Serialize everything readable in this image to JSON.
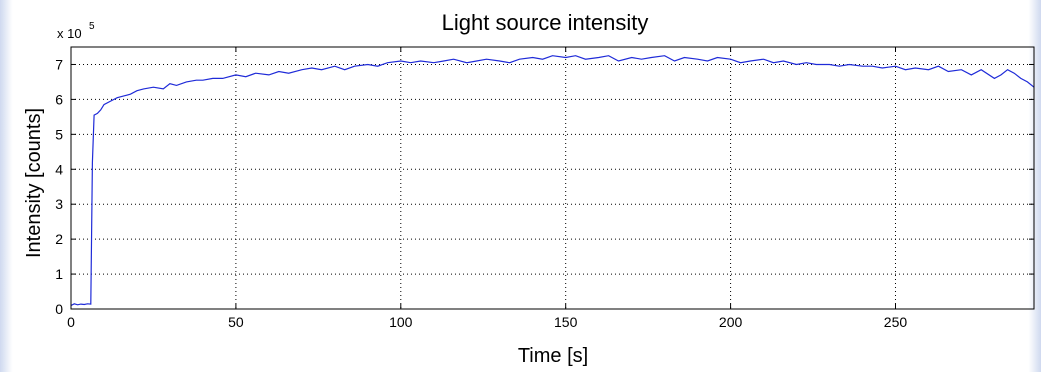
{
  "chart_data": {
    "type": "line",
    "title": "Light source intensity",
    "xlabel": "Time [s]",
    "ylabel": "Intensity [counts]",
    "y_multiplier_label": "x 10",
    "y_multiplier_exponent": "5",
    "xlim": [
      0,
      292
    ],
    "ylim": [
      0,
      7.5
    ],
    "grid": true,
    "x_ticks": [
      0,
      50,
      100,
      150,
      200,
      250
    ],
    "y_ticks": [
      0,
      1,
      2,
      3,
      4,
      5,
      6,
      7
    ],
    "x_tick_labels": [
      "0",
      "50",
      "100",
      "150",
      "200",
      "250"
    ],
    "y_tick_labels": [
      "0",
      "1",
      "2",
      "3",
      "4",
      "5",
      "6",
      "7"
    ],
    "series": [
      {
        "color": "#1f2bd8",
        "x": [
          0,
          1,
          2,
          3,
          4,
          5,
          6,
          6.5,
          7,
          8,
          9,
          10,
          12,
          14,
          16,
          18,
          20,
          22,
          25,
          28,
          30,
          32,
          35,
          38,
          40,
          43,
          46,
          50,
          53,
          56,
          60,
          63,
          66,
          70,
          73,
          76,
          80,
          83,
          86,
          90,
          93,
          96,
          100,
          103,
          106,
          110,
          113,
          116,
          120,
          123,
          126,
          130,
          133,
          136,
          140,
          143,
          146,
          150,
          153,
          156,
          160,
          163,
          166,
          170,
          173,
          176,
          180,
          183,
          186,
          190,
          193,
          196,
          200,
          203,
          206,
          210,
          213,
          216,
          220,
          223,
          226,
          230,
          233,
          236,
          240,
          243,
          246,
          250,
          253,
          256,
          260,
          263,
          266,
          270,
          273,
          276,
          280,
          282,
          284,
          286,
          288,
          290,
          292
        ],
        "y": [
          0.1,
          0.15,
          0.12,
          0.14,
          0.13,
          0.15,
          0.14,
          4.2,
          5.55,
          5.6,
          5.7,
          5.85,
          5.95,
          6.05,
          6.1,
          6.15,
          6.25,
          6.3,
          6.35,
          6.3,
          6.45,
          6.4,
          6.5,
          6.55,
          6.55,
          6.6,
          6.6,
          6.7,
          6.65,
          6.75,
          6.7,
          6.8,
          6.75,
          6.85,
          6.9,
          6.85,
          6.95,
          6.85,
          6.95,
          7.0,
          6.95,
          7.05,
          7.1,
          7.05,
          7.1,
          7.05,
          7.1,
          7.15,
          7.05,
          7.1,
          7.15,
          7.1,
          7.05,
          7.15,
          7.2,
          7.15,
          7.25,
          7.2,
          7.25,
          7.15,
          7.2,
          7.25,
          7.1,
          7.2,
          7.15,
          7.2,
          7.25,
          7.1,
          7.2,
          7.15,
          7.1,
          7.2,
          7.15,
          7.05,
          7.1,
          7.15,
          7.05,
          7.1,
          7.0,
          7.05,
          7.0,
          7.0,
          6.95,
          7.0,
          6.95,
          6.95,
          6.9,
          6.95,
          6.85,
          6.9,
          6.85,
          6.95,
          6.8,
          6.85,
          6.7,
          6.85,
          6.6,
          6.7,
          6.85,
          6.75,
          6.6,
          6.5,
          6.35
        ]
      }
    ]
  }
}
